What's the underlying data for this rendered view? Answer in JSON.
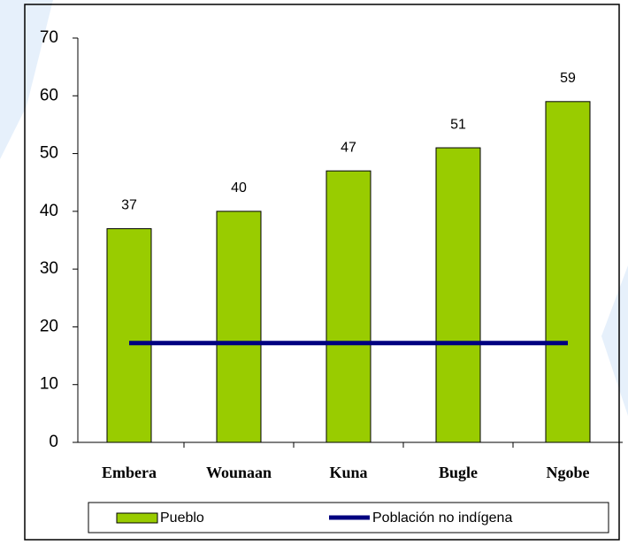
{
  "chart_data": {
    "type": "bar",
    "categories": [
      "Embera",
      "Wounaan",
      "Kuna",
      "Bugle",
      "Ngobe"
    ],
    "series": [
      {
        "name": "Pueblo",
        "type": "bar",
        "color": "#99cc00",
        "values": [
          37,
          40,
          47,
          51,
          59
        ]
      },
      {
        "name": "Población no indígena",
        "type": "line",
        "color": "#000080",
        "values": [
          17.2,
          17.2,
          17.2,
          17.2,
          17.2
        ]
      }
    ],
    "ylim": [
      0,
      70
    ],
    "yticks": [
      0,
      10,
      20,
      30,
      40,
      50,
      60,
      70
    ],
    "grid": false,
    "legend": "bottom"
  }
}
